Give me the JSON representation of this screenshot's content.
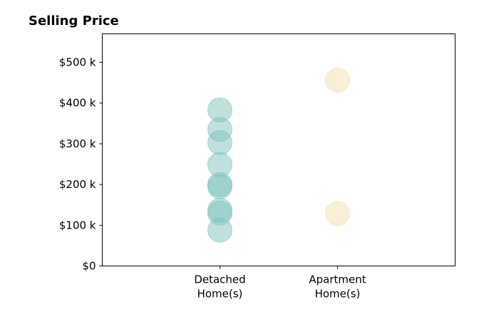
{
  "chart_data": {
    "type": "scatter",
    "title": "Selling Price",
    "xlabel": "",
    "ylabel": "",
    "categories": [
      [
        "Detached",
        "Home(s)"
      ],
      [
        "Apartment",
        "Home(s)"
      ]
    ],
    "x_range": [
      -1,
      2
    ],
    "ylim": [
      0,
      570000
    ],
    "y_ticks": [
      {
        "value": 0,
        "label": "$0"
      },
      {
        "value": 100000,
        "label": "$100 k"
      },
      {
        "value": 200000,
        "label": "$200 k"
      },
      {
        "value": 300000,
        "label": "$300 k"
      },
      {
        "value": 400000,
        "label": "$400 k"
      },
      {
        "value": 500000,
        "label": "$500 k"
      }
    ],
    "grid": false,
    "legend": "none",
    "series": [
      {
        "category_index": 0,
        "color": "#7fc4bd",
        "values": [
          383000,
          335000,
          303000,
          249000,
          200000,
          195000,
          137000,
          130000,
          88000
        ]
      },
      {
        "category_index": 1,
        "color": "#f3dfb0",
        "values": [
          456000,
          129000
        ]
      }
    ]
  }
}
